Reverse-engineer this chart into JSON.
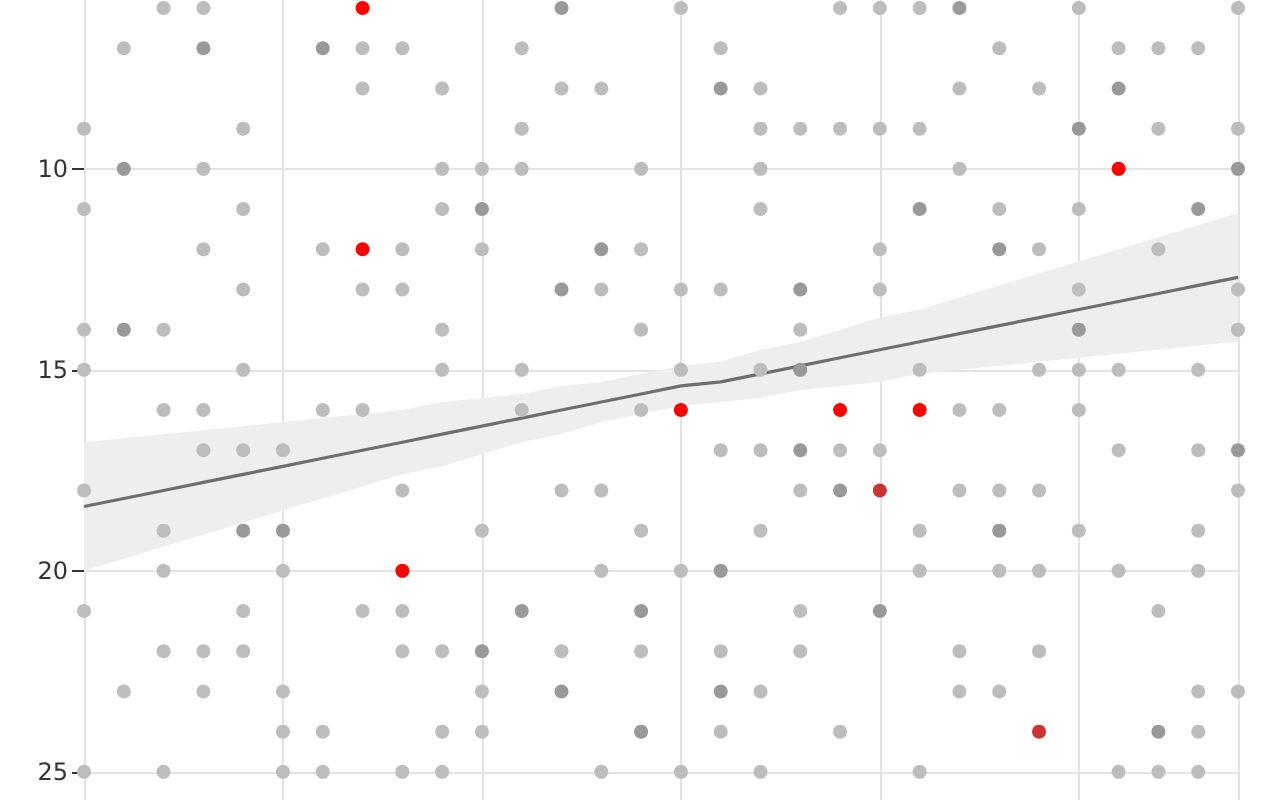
{
  "chart_data": {
    "type": "scatter",
    "categories": [
      null,
      null,
      null,
      null,
      null,
      null,
      null,
      null,
      null,
      null,
      null,
      null,
      null,
      null,
      null,
      null,
      null,
      null,
      null,
      null,
      null,
      null,
      null,
      null,
      null,
      null,
      null,
      null,
      null,
      null
    ],
    "ylim": [
      25.7,
      5.8
    ],
    "yticks": [
      10,
      15,
      20,
      25
    ],
    "tick_labels": "y",
    "grid": true,
    "marker": "circle",
    "series": [
      {
        "values": [
          null,
          null,
          6,
          6,
          null,
          null,
          null,
          6,
          null,
          null,
          null,
          null,
          6,
          null,
          null,
          6,
          null,
          null,
          null,
          6,
          6,
          6,
          6,
          null,
          null,
          6,
          null,
          null,
          null,
          6
        ],
        "colors": [
          null,
          null,
          "#bdbdbd",
          "#bdbdbd",
          null,
          null,
          null,
          "#ff0000",
          null,
          null,
          null,
          null,
          "#999999",
          null,
          null,
          "#bdbdbd",
          null,
          null,
          null,
          "#bdbdbd",
          "#bdbdbd",
          "#bdbdbd",
          "#999999",
          null,
          null,
          "#bdbdbd",
          null,
          null,
          null,
          "#bdbdbd"
        ]
      },
      {
        "values": [
          null,
          7,
          null,
          7,
          null,
          null,
          7,
          7,
          7,
          null,
          null,
          7,
          null,
          null,
          null,
          null,
          7,
          null,
          null,
          null,
          null,
          null,
          null,
          7,
          null,
          null,
          7,
          7,
          7,
          null
        ],
        "colors": [
          null,
          "#bdbdbd",
          null,
          "#999999",
          null,
          null,
          "#999999",
          "#bdbdbd",
          "#bdbdbd",
          null,
          null,
          "#bdbdbd",
          null,
          null,
          null,
          null,
          "#bdbdbd",
          null,
          null,
          null,
          null,
          null,
          null,
          "#bdbdbd",
          null,
          null,
          "#bdbdbd",
          "#bdbdbd",
          "#bdbdbd",
          null
        ]
      },
      {
        "values": [
          null,
          null,
          null,
          null,
          null,
          null,
          null,
          8,
          null,
          8,
          null,
          null,
          8,
          8,
          null,
          null,
          8,
          8,
          null,
          null,
          null,
          null,
          8,
          null,
          8,
          null,
          8,
          null,
          null,
          null
        ],
        "colors": [
          null,
          null,
          null,
          null,
          null,
          null,
          null,
          "#bdbdbd",
          null,
          "#bdbdbd",
          null,
          null,
          "#bdbdbd",
          "#bdbdbd",
          null,
          null,
          "#999999",
          "#bdbdbd",
          null,
          null,
          null,
          null,
          "#bdbdbd",
          null,
          "#bdbdbd",
          null,
          "#999999",
          null,
          null,
          null
        ]
      },
      {
        "values": [
          9,
          null,
          null,
          null,
          9,
          null,
          null,
          null,
          null,
          null,
          null,
          9,
          null,
          null,
          null,
          null,
          null,
          9,
          9,
          9,
          9,
          9,
          null,
          null,
          null,
          9,
          null,
          9,
          null,
          9
        ],
        "colors": [
          "#bdbdbd",
          null,
          null,
          null,
          "#bdbdbd",
          null,
          null,
          null,
          null,
          null,
          null,
          "#bdbdbd",
          null,
          null,
          null,
          null,
          null,
          "#bdbdbd",
          "#bdbdbd",
          "#bdbdbd",
          "#bdbdbd",
          "#bdbdbd",
          null,
          null,
          null,
          "#999999",
          null,
          "#bdbdbd",
          null,
          "#bdbdbd"
        ]
      },
      {
        "values": [
          null,
          10,
          null,
          10,
          null,
          null,
          null,
          null,
          null,
          10,
          10,
          10,
          null,
          null,
          10,
          null,
          null,
          10,
          null,
          null,
          null,
          null,
          10,
          null,
          null,
          null,
          10,
          null,
          null,
          10
        ],
        "colors": [
          null,
          "#999999",
          null,
          "#bdbdbd",
          null,
          null,
          null,
          null,
          null,
          "#bdbdbd",
          "#bdbdbd",
          "#bdbdbd",
          null,
          null,
          "#bdbdbd",
          null,
          null,
          "#bdbdbd",
          null,
          null,
          null,
          null,
          "#bdbdbd",
          null,
          null,
          null,
          "#ff0000",
          null,
          null,
          "#999999"
        ]
      },
      {
        "values": [
          11,
          null,
          null,
          null,
          11,
          null,
          null,
          null,
          null,
          11,
          11,
          null,
          null,
          null,
          null,
          null,
          null,
          11,
          null,
          null,
          null,
          11,
          null,
          11,
          null,
          11,
          null,
          null,
          11,
          null
        ],
        "colors": [
          "#bdbdbd",
          null,
          null,
          null,
          "#bdbdbd",
          null,
          null,
          null,
          null,
          "#bdbdbd",
          "#999999",
          null,
          null,
          null,
          null,
          null,
          null,
          "#bdbdbd",
          null,
          null,
          null,
          "#999999",
          null,
          "#bdbdbd",
          null,
          "#bdbdbd",
          null,
          null,
          "#999999",
          null
        ]
      },
      {
        "values": [
          null,
          null,
          null,
          12,
          null,
          null,
          12,
          12,
          12,
          null,
          12,
          null,
          null,
          12,
          12,
          null,
          null,
          null,
          null,
          null,
          12,
          null,
          null,
          12,
          12,
          null,
          null,
          12,
          null,
          null
        ],
        "colors": [
          null,
          null,
          null,
          "#bdbdbd",
          null,
          null,
          "#bdbdbd",
          "#ff0000",
          "#bdbdbd",
          null,
          "#bdbdbd",
          null,
          null,
          "#999999",
          "#bdbdbd",
          null,
          null,
          null,
          null,
          null,
          "#bdbdbd",
          null,
          null,
          "#999999",
          "#bdbdbd",
          null,
          null,
          "#bdbdbd",
          null,
          null
        ]
      },
      {
        "values": [
          null,
          null,
          null,
          null,
          13,
          null,
          null,
          13,
          13,
          null,
          null,
          null,
          13,
          13,
          null,
          13,
          13,
          null,
          13,
          null,
          13,
          null,
          null,
          null,
          null,
          13,
          null,
          null,
          null,
          13
        ],
        "colors": [
          null,
          null,
          null,
          null,
          "#bdbdbd",
          null,
          null,
          "#bdbdbd",
          "#bdbdbd",
          null,
          null,
          null,
          "#999999",
          "#bdbdbd",
          null,
          "#bdbdbd",
          "#bdbdbd",
          null,
          "#999999",
          null,
          "#bdbdbd",
          null,
          null,
          null,
          null,
          "#bdbdbd",
          null,
          null,
          null,
          "#bdbdbd"
        ]
      },
      {
        "values": [
          14,
          14,
          14,
          null,
          null,
          null,
          null,
          null,
          null,
          14,
          null,
          null,
          null,
          null,
          14,
          null,
          null,
          null,
          14,
          null,
          null,
          null,
          null,
          null,
          null,
          14,
          null,
          null,
          null,
          14
        ],
        "colors": [
          "#bdbdbd",
          "#999999",
          "#bdbdbd",
          null,
          null,
          null,
          null,
          null,
          null,
          "#bdbdbd",
          null,
          null,
          null,
          null,
          "#bdbdbd",
          null,
          null,
          null,
          "#bdbdbd",
          null,
          null,
          null,
          null,
          null,
          null,
          "#999999",
          null,
          null,
          null,
          "#bdbdbd"
        ]
      },
      {
        "values": [
          15,
          null,
          null,
          null,
          15,
          null,
          null,
          null,
          null,
          15,
          null,
          15,
          null,
          null,
          null,
          15,
          null,
          15,
          15,
          null,
          null,
          15,
          null,
          null,
          15,
          15,
          15,
          null,
          15,
          null
        ],
        "colors": [
          "#bdbdbd",
          null,
          null,
          null,
          "#bdbdbd",
          null,
          null,
          null,
          null,
          "#bdbdbd",
          null,
          "#bdbdbd",
          null,
          null,
          null,
          "#bdbdbd",
          null,
          "#bdbdbd",
          "#999999",
          null,
          null,
          "#bdbdbd",
          null,
          null,
          "#bdbdbd",
          "#bdbdbd",
          "#bdbdbd",
          null,
          "#bdbdbd",
          null
        ]
      },
      {
        "values": [
          null,
          null,
          16,
          16,
          null,
          null,
          16,
          16,
          null,
          null,
          null,
          16,
          null,
          null,
          16,
          16,
          null,
          null,
          null,
          16,
          null,
          16,
          16,
          16,
          null,
          16,
          null,
          null,
          null,
          null
        ],
        "colors": [
          null,
          null,
          "#bdbdbd",
          "#bdbdbd",
          null,
          null,
          "#bdbdbd",
          "#bdbdbd",
          null,
          null,
          null,
          "#bdbdbd",
          null,
          null,
          "#bdbdbd",
          "#ff0000",
          null,
          null,
          null,
          "#ff0000",
          null,
          "#ff0000",
          "#bdbdbd",
          "#bdbdbd",
          null,
          "#bdbdbd",
          null,
          null,
          null,
          null
        ]
      },
      {
        "values": [
          null,
          null,
          null,
          17,
          17,
          17,
          null,
          null,
          null,
          null,
          null,
          null,
          null,
          null,
          null,
          null,
          17,
          17,
          17,
          17,
          17,
          null,
          null,
          null,
          null,
          null,
          17,
          null,
          17,
          17
        ],
        "colors": [
          null,
          null,
          null,
          "#bdbdbd",
          "#bdbdbd",
          "#bdbdbd",
          null,
          null,
          null,
          null,
          null,
          null,
          null,
          null,
          null,
          null,
          "#bdbdbd",
          "#bdbdbd",
          "#999999",
          "#bdbdbd",
          "#bdbdbd",
          null,
          null,
          null,
          null,
          null,
          "#bdbdbd",
          null,
          "#bdbdbd",
          "#999999"
        ]
      },
      {
        "values": [
          18,
          null,
          null,
          null,
          null,
          null,
          null,
          null,
          18,
          null,
          null,
          null,
          18,
          18,
          null,
          null,
          null,
          null,
          18,
          18,
          18,
          null,
          18,
          18,
          18,
          null,
          null,
          null,
          null,
          18
        ],
        "colors": [
          "#bdbdbd",
          null,
          null,
          null,
          null,
          null,
          null,
          null,
          "#bdbdbd",
          null,
          null,
          null,
          "#bdbdbd",
          "#bdbdbd",
          null,
          null,
          null,
          null,
          "#bdbdbd",
          "#999999",
          "#cc3333",
          null,
          "#bdbdbd",
          "#bdbdbd",
          "#bdbdbd",
          null,
          null,
          null,
          null,
          "#bdbdbd"
        ]
      },
      {
        "values": [
          null,
          null,
          19,
          null,
          19,
          19,
          null,
          null,
          null,
          null,
          19,
          null,
          null,
          null,
          19,
          null,
          null,
          19,
          null,
          null,
          null,
          19,
          null,
          19,
          null,
          19,
          null,
          null,
          19,
          null
        ],
        "colors": [
          null,
          null,
          "#bdbdbd",
          null,
          "#999999",
          "#999999",
          null,
          null,
          null,
          null,
          "#bdbdbd",
          null,
          null,
          null,
          "#bdbdbd",
          null,
          null,
          "#bdbdbd",
          null,
          null,
          null,
          "#bdbdbd",
          null,
          "#999999",
          null,
          "#bdbdbd",
          null,
          null,
          "#bdbdbd",
          null
        ]
      },
      {
        "values": [
          null,
          null,
          20,
          null,
          null,
          20,
          null,
          null,
          20,
          null,
          null,
          null,
          null,
          20,
          null,
          20,
          20,
          null,
          null,
          null,
          null,
          20,
          null,
          20,
          20,
          null,
          20,
          null,
          20,
          null
        ],
        "colors": [
          null,
          null,
          "#bdbdbd",
          null,
          null,
          "#bdbdbd",
          null,
          null,
          "#ff0000",
          null,
          null,
          null,
          null,
          "#bdbdbd",
          null,
          "#bdbdbd",
          "#999999",
          null,
          null,
          null,
          null,
          "#bdbdbd",
          null,
          "#bdbdbd",
          "#bdbdbd",
          null,
          "#bdbdbd",
          null,
          "#bdbdbd",
          null
        ]
      },
      {
        "values": [
          21,
          null,
          null,
          null,
          21,
          null,
          null,
          21,
          21,
          null,
          null,
          21,
          null,
          null,
          21,
          null,
          null,
          null,
          21,
          null,
          21,
          null,
          null,
          null,
          null,
          null,
          null,
          21,
          null,
          null
        ],
        "colors": [
          "#bdbdbd",
          null,
          null,
          null,
          "#bdbdbd",
          null,
          null,
          "#bdbdbd",
          "#bdbdbd",
          null,
          null,
          "#999999",
          null,
          null,
          "#999999",
          null,
          null,
          null,
          "#bdbdbd",
          null,
          "#999999",
          null,
          null,
          null,
          null,
          null,
          null,
          "#bdbdbd",
          null,
          null
        ]
      },
      {
        "values": [
          null,
          null,
          22,
          22,
          22,
          null,
          null,
          null,
          22,
          22,
          22,
          null,
          22,
          null,
          22,
          null,
          22,
          null,
          22,
          null,
          null,
          null,
          22,
          null,
          22,
          null,
          null,
          null,
          null,
          null
        ],
        "colors": [
          null,
          null,
          "#bdbdbd",
          "#bdbdbd",
          "#bdbdbd",
          null,
          null,
          null,
          "#bdbdbd",
          "#bdbdbd",
          "#999999",
          null,
          "#bdbdbd",
          null,
          "#bdbdbd",
          null,
          "#bdbdbd",
          null,
          "#bdbdbd",
          null,
          null,
          null,
          "#bdbdbd",
          null,
          "#bdbdbd",
          null,
          null,
          null,
          null,
          null
        ]
      },
      {
        "values": [
          null,
          23,
          null,
          23,
          null,
          23,
          null,
          null,
          null,
          null,
          23,
          null,
          23,
          null,
          null,
          null,
          23,
          23,
          null,
          null,
          null,
          null,
          23,
          23,
          null,
          null,
          null,
          null,
          23,
          23
        ],
        "colors": [
          null,
          "#bdbdbd",
          null,
          "#bdbdbd",
          null,
          "#bdbdbd",
          null,
          null,
          null,
          null,
          "#bdbdbd",
          null,
          "#999999",
          null,
          null,
          null,
          "#999999",
          "#bdbdbd",
          null,
          null,
          null,
          null,
          "#bdbdbd",
          "#bdbdbd",
          null,
          null,
          null,
          null,
          "#bdbdbd",
          "#bdbdbd"
        ]
      },
      {
        "values": [
          null,
          null,
          null,
          null,
          null,
          24,
          24,
          null,
          null,
          24,
          24,
          null,
          null,
          null,
          24,
          null,
          24,
          null,
          null,
          24,
          null,
          null,
          null,
          null,
          24,
          null,
          null,
          24,
          24,
          null
        ],
        "colors": [
          null,
          null,
          null,
          null,
          null,
          "#bdbdbd",
          "#bdbdbd",
          null,
          null,
          "#bdbdbd",
          "#bdbdbd",
          null,
          null,
          null,
          "#999999",
          null,
          "#bdbdbd",
          null,
          null,
          "#bdbdbd",
          null,
          null,
          null,
          null,
          "#cc3333",
          null,
          null,
          "#999999",
          "#bdbdbd",
          null
        ]
      },
      {
        "values": [
          25,
          null,
          25,
          null,
          null,
          25,
          25,
          null,
          25,
          25,
          null,
          null,
          null,
          25,
          null,
          25,
          null,
          25,
          null,
          null,
          null,
          25,
          null,
          null,
          null,
          null,
          25,
          25,
          25,
          null
        ],
        "colors": [
          "#bdbdbd",
          null,
          "#bdbdbd",
          null,
          null,
          "#bdbdbd",
          "#bdbdbd",
          null,
          "#bdbdbd",
          "#bdbdbd",
          null,
          null,
          null,
          "#bdbdbd",
          null,
          "#bdbdbd",
          null,
          "#bdbdbd",
          null,
          null,
          null,
          "#bdbdbd",
          null,
          null,
          null,
          null,
          "#bdbdbd",
          "#bdbdbd",
          "#bdbdbd",
          null
        ]
      },
      {
        "type": "line",
        "color": "#6e6e6e",
        "marker": "none",
        "values": [
          18.4,
          18.2,
          18.0,
          17.8,
          17.6,
          17.4,
          17.2,
          17.0,
          16.8,
          16.6,
          16.4,
          16.2,
          16.0,
          15.8,
          15.6,
          15.4,
          15.3,
          15.1,
          14.9,
          14.7,
          14.5,
          14.3,
          14.1,
          13.9,
          13.7,
          13.5,
          13.3,
          13.1,
          12.9,
          12.7
        ],
        "lower": [
          16.8,
          16.7,
          16.6,
          16.5,
          16.4,
          16.3,
          16.2,
          16.1,
          16.0,
          15.8,
          15.7,
          15.6,
          15.4,
          15.3,
          15.1,
          14.9,
          14.8,
          14.5,
          14.3,
          14.0,
          13.7,
          13.5,
          13.2,
          12.9,
          12.6,
          12.3,
          12.0,
          11.7,
          11.4,
          11.1
        ],
        "upper": [
          20.0,
          19.7,
          19.4,
          19.1,
          18.8,
          18.5,
          18.2,
          17.9,
          17.6,
          17.4,
          17.1,
          16.8,
          16.6,
          16.3,
          16.1,
          15.9,
          15.8,
          15.7,
          15.5,
          15.4,
          15.3,
          15.1,
          15.0,
          14.9,
          14.8,
          14.7,
          14.6,
          14.5,
          14.4,
          14.3
        ]
      }
    ]
  }
}
